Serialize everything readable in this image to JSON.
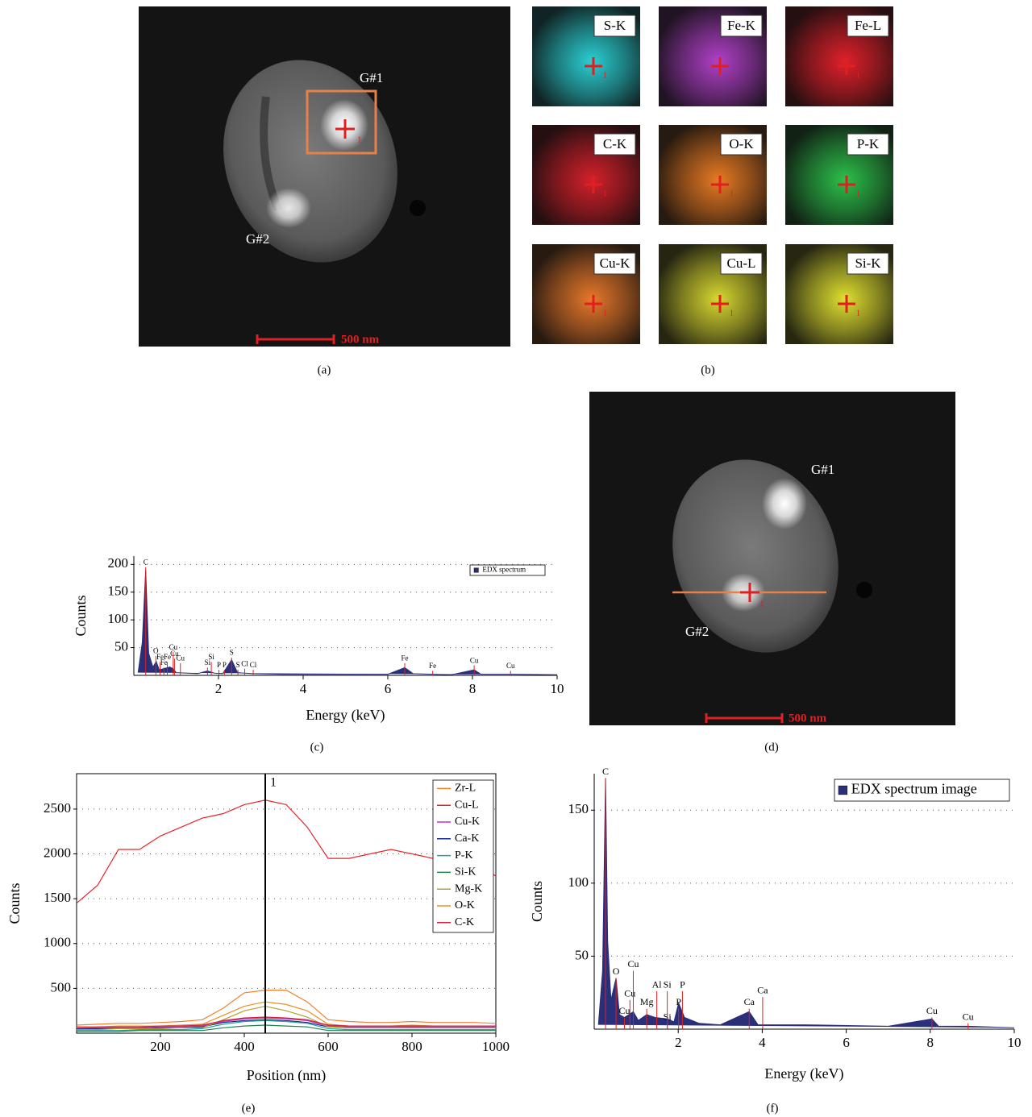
{
  "panel_labels": [
    "(a)",
    "(b)",
    "(c)",
    "(d)",
    "(e)",
    "(f)"
  ],
  "image_a": {
    "regions": [
      "G#1",
      "G#2"
    ],
    "scale_bar": "500 nm",
    "marker": "1"
  },
  "image_b": {
    "marker": "1",
    "maps": [
      {
        "label": "S-K",
        "color": "#2ad0d4"
      },
      {
        "label": "Fe-K",
        "color": "#b040c8"
      },
      {
        "label": "Fe-L",
        "color": "#e0202a"
      },
      {
        "label": "C-K",
        "color": "#d4202a"
      },
      {
        "label": "O-K",
        "color": "#e87a22"
      },
      {
        "label": "P-K",
        "color": "#2cc04a"
      },
      {
        "label": "Cu-K",
        "color": "#e8782a"
      },
      {
        "label": "Cu-L",
        "color": "#d8d830"
      },
      {
        "label": "Si-K",
        "color": "#e0e030"
      }
    ]
  },
  "image_d": {
    "regions": [
      "G#1",
      "G#2"
    ],
    "scale_bar": "500 nm",
    "marker": "1"
  },
  "chart_data": [
    {
      "type": "area",
      "xlabel": "Energy (keV)",
      "ylabel": "Counts",
      "x": [
        0.1,
        0.2,
        0.28,
        0.35,
        0.45,
        0.53,
        0.6,
        0.7,
        0.85,
        0.93,
        1.0,
        1.5,
        1.74,
        1.9,
        2.1,
        2.31,
        2.45,
        2.62,
        2.8,
        3.5,
        6.0,
        6.4,
        6.6,
        7.06,
        7.5,
        8.04,
        8.2,
        8.9,
        10
      ],
      "series": [
        {
          "name": "EDX spectrum",
          "color": "#2a2f7a",
          "values": [
            5,
            60,
            190,
            40,
            15,
            25,
            10,
            12,
            15,
            12,
            5,
            3,
            8,
            4,
            3,
            28,
            5,
            4,
            3,
            2,
            2,
            14,
            3,
            2,
            1,
            10,
            2,
            2,
            1
          ]
        }
      ],
      "xlim": [
        0,
        10
      ],
      "ylim": [
        0,
        215
      ],
      "xticks": [
        2,
        4,
        6,
        8,
        10
      ],
      "yticks": [
        50,
        100,
        150,
        200
      ],
      "grid": true,
      "legend": "top-right",
      "peak_labels": [
        {
          "text": "C",
          "x": 0.28,
          "y": 195
        },
        {
          "text": "O",
          "x": 0.52,
          "y": 35
        },
        {
          "text": "Fe",
          "x": 0.62,
          "y": 24
        },
        {
          "text": "Fe",
          "x": 0.71,
          "y": 14
        },
        {
          "text": "Fe",
          "x": 0.79,
          "y": 24
        },
        {
          "text": "Cu",
          "x": 0.93,
          "y": 42
        },
        {
          "text": "Cu",
          "x": 0.96,
          "y": 30
        },
        {
          "text": "Cu",
          "x": 1.1,
          "y": 22
        },
        {
          "text": "Si",
          "x": 1.74,
          "y": 14
        },
        {
          "text": "Si",
          "x": 1.83,
          "y": 24
        },
        {
          "text": "P",
          "x": 2.01,
          "y": 10
        },
        {
          "text": "P",
          "x": 2.14,
          "y": 10
        },
        {
          "text": "S",
          "x": 2.31,
          "y": 32
        },
        {
          "text": "S",
          "x": 2.46,
          "y": 10
        },
        {
          "text": "Cl",
          "x": 2.62,
          "y": 12
        },
        {
          "text": "Cl",
          "x": 2.82,
          "y": 10
        },
        {
          "text": "Fe",
          "x": 6.4,
          "y": 22
        },
        {
          "text": "Fe",
          "x": 7.06,
          "y": 8
        },
        {
          "text": "Cu",
          "x": 8.04,
          "y": 18
        },
        {
          "text": "Cu",
          "x": 8.9,
          "y": 8
        }
      ]
    },
    {
      "type": "line",
      "xlabel": "Position (nm)",
      "ylabel": "Counts",
      "x": [
        0,
        50,
        100,
        150,
        200,
        250,
        300,
        350,
        400,
        450,
        500,
        550,
        600,
        650,
        700,
        750,
        800,
        850,
        900,
        950,
        1000
      ],
      "series": [
        {
          "name": "Zr-L",
          "color": "#f08030",
          "values": [
            90,
            100,
            110,
            110,
            120,
            130,
            150,
            280,
            450,
            480,
            480,
            350,
            150,
            130,
            120,
            120,
            130,
            120,
            120,
            120,
            110
          ]
        },
        {
          "name": "Cu-L",
          "color": "#e8242a",
          "values": [
            1450,
            1650,
            2050,
            2050,
            2200,
            2300,
            2400,
            2450,
            2550,
            2600,
            2550,
            2300,
            1950,
            1950,
            2000,
            2050,
            2000,
            1950,
            2000,
            1950,
            1750
          ]
        },
        {
          "name": "Cu-K",
          "color": "#c030c0",
          "values": [
            60,
            60,
            60,
            60,
            70,
            70,
            80,
            130,
            160,
            170,
            160,
            140,
            80,
            70,
            70,
            70,
            70,
            70,
            70,
            70,
            70
          ]
        },
        {
          "name": "Ca-K",
          "color": "#1a2a8a",
          "values": [
            50,
            50,
            50,
            50,
            60,
            60,
            70,
            120,
            140,
            150,
            140,
            120,
            70,
            60,
            60,
            60,
            60,
            60,
            60,
            60,
            60
          ]
        },
        {
          "name": "P-K",
          "color": "#20a0a0",
          "values": [
            30,
            30,
            30,
            40,
            40,
            40,
            50,
            100,
            130,
            140,
            130,
            110,
            50,
            40,
            40,
            40,
            40,
            40,
            40,
            40,
            40
          ]
        },
        {
          "name": "Si-K",
          "color": "#208050",
          "values": [
            20,
            20,
            20,
            30,
            30,
            30,
            30,
            60,
            80,
            90,
            80,
            70,
            30,
            30,
            30,
            30,
            30,
            30,
            30,
            30,
            30
          ]
        },
        {
          "name": "Mg-K",
          "color": "#b0a030",
          "values": [
            40,
            40,
            50,
            50,
            50,
            60,
            60,
            150,
            250,
            300,
            250,
            180,
            70,
            60,
            60,
            60,
            60,
            60,
            60,
            60,
            60
          ]
        },
        {
          "name": "O-K",
          "color": "#e89020",
          "values": [
            60,
            70,
            80,
            80,
            80,
            90,
            100,
            200,
            300,
            350,
            320,
            250,
            100,
            80,
            80,
            80,
            90,
            80,
            80,
            80,
            80
          ]
        },
        {
          "name": "C-K",
          "color": "#d02040",
          "values": [
            70,
            70,
            70,
            70,
            80,
            80,
            90,
            140,
            170,
            180,
            170,
            150,
            90,
            80,
            80,
            80,
            80,
            80,
            80,
            80,
            80
          ]
        }
      ],
      "xlim": [
        0,
        1000
      ],
      "ylim": [
        0,
        2895
      ],
      "xticks": [
        200,
        400,
        600,
        800,
        1000
      ],
      "yticks": [
        500,
        1000,
        1500,
        2000,
        2500
      ],
      "grid": true,
      "legend": "top-right",
      "vline": {
        "x": 450,
        "label": "1"
      }
    },
    {
      "type": "area",
      "xlabel": "Energy (keV)",
      "ylabel": "Counts",
      "x": [
        0.1,
        0.2,
        0.27,
        0.32,
        0.4,
        0.52,
        0.6,
        0.72,
        0.93,
        1.05,
        1.25,
        1.45,
        1.74,
        1.9,
        2.01,
        2.15,
        2.5,
        3.0,
        3.69,
        3.9,
        5,
        7,
        8.04,
        8.2,
        8.9,
        10
      ],
      "series": [
        {
          "name": "EDX spectrum image",
          "color": "#2a2f7a",
          "values": [
            3,
            40,
            172,
            60,
            20,
            35,
            10,
            8,
            12,
            6,
            10,
            8,
            7,
            5,
            18,
            8,
            4,
            3,
            12,
            3,
            3,
            2,
            7,
            2,
            2,
            1
          ]
        }
      ],
      "xlim": [
        0,
        10
      ],
      "ylim": [
        0,
        175
      ],
      "xticks": [
        2,
        4,
        6,
        8,
        10
      ],
      "yticks": [
        50,
        100,
        150
      ],
      "grid": true,
      "legend": "top-right",
      "peak_labels": [
        {
          "text": "C",
          "x": 0.27,
          "y": 172
        },
        {
          "text": "O",
          "x": 0.52,
          "y": 35
        },
        {
          "text": "Cu",
          "x": 0.72,
          "y": 8
        },
        {
          "text": "Cu",
          "x": 0.85,
          "y": 20
        },
        {
          "text": "Cu",
          "x": 0.93,
          "y": 40
        },
        {
          "text": "Mg",
          "x": 1.25,
          "y": 14
        },
        {
          "text": "Al",
          "x": 1.49,
          "y": 26
        },
        {
          "text": "Si",
          "x": 1.74,
          "y": 4
        },
        {
          "text": "Si",
          "x": 1.74,
          "y": 26
        },
        {
          "text": "P",
          "x": 2.01,
          "y": 14
        },
        {
          "text": "P",
          "x": 2.1,
          "y": 26
        },
        {
          "text": "Ca",
          "x": 3.69,
          "y": 14
        },
        {
          "text": "Ca",
          "x": 4.01,
          "y": 22
        },
        {
          "text": "Cu",
          "x": 8.04,
          "y": 8
        },
        {
          "text": "Cu",
          "x": 8.9,
          "y": 4
        }
      ]
    }
  ]
}
